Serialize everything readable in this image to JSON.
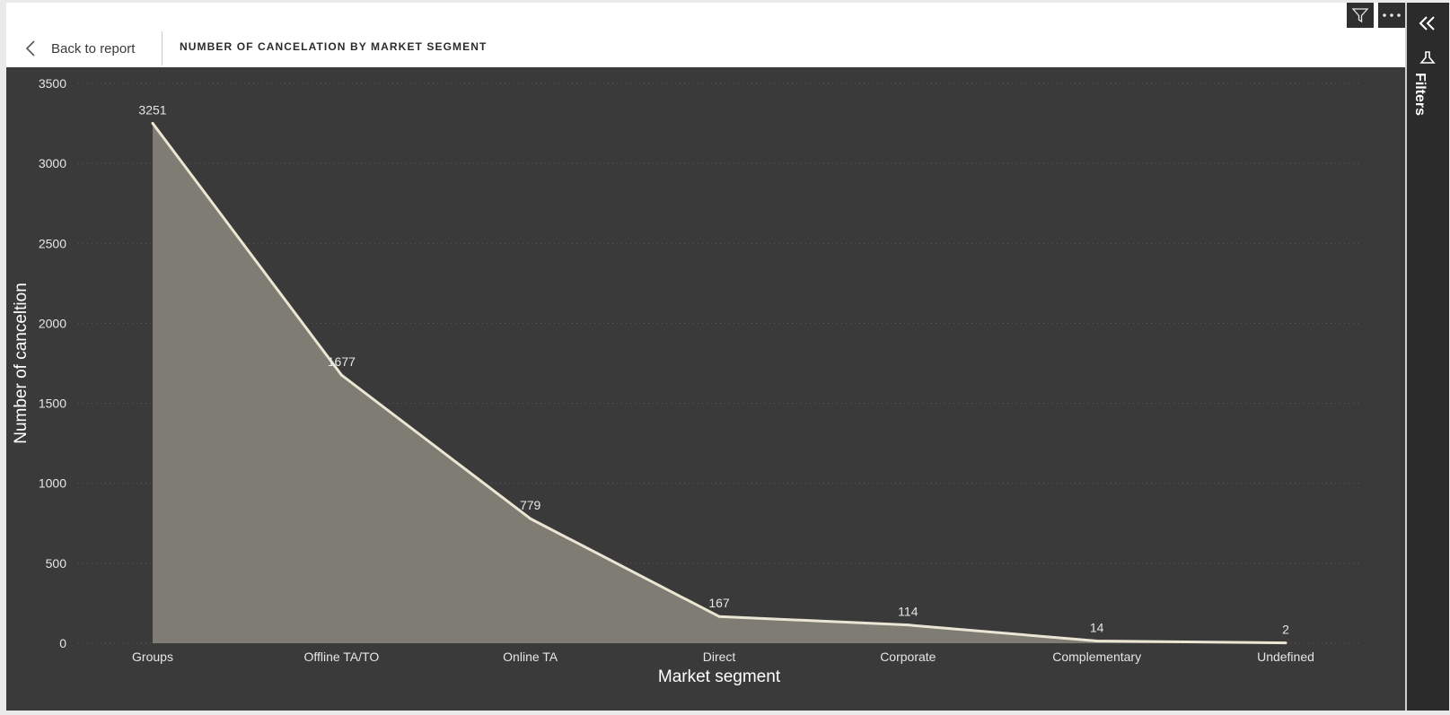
{
  "header": {
    "back_label": "Back to report",
    "title": "NUMBER OF CANCELATION BY MARKET SEGMENT"
  },
  "toolbar": {
    "filter_icon": "filter-icon",
    "more_icon": "more-options-icon"
  },
  "filters_pane": {
    "label": "Filters",
    "collapse_icon": "double-chevron-left-icon",
    "funnel_icon": "funnel-icon"
  },
  "colors": {
    "chart_bg": "#3a3a3a",
    "area_fill": "#7e7c73",
    "line": "#ebe6d4",
    "text": "#e6e6e6",
    "grid": "#5a5a5a"
  },
  "chart_data": {
    "type": "area",
    "categories": [
      "Groups",
      "Offline TA/TO",
      "Online TA",
      "Direct",
      "Corporate",
      "Complementary",
      "Undefined"
    ],
    "values": [
      3251,
      1677,
      779,
      167,
      114,
      14,
      2
    ],
    "data_labels": [
      "3251",
      "1677",
      "779",
      "167",
      "114",
      "14",
      "2"
    ],
    "xlabel": "Market segment",
    "ylabel": "Number of canceltion",
    "ylim": [
      0,
      3500
    ],
    "yticks": [
      "0",
      "500",
      "1000",
      "1500",
      "2000",
      "2500",
      "3000",
      "3500"
    ],
    "grid": true,
    "grid_style": "dotted"
  }
}
